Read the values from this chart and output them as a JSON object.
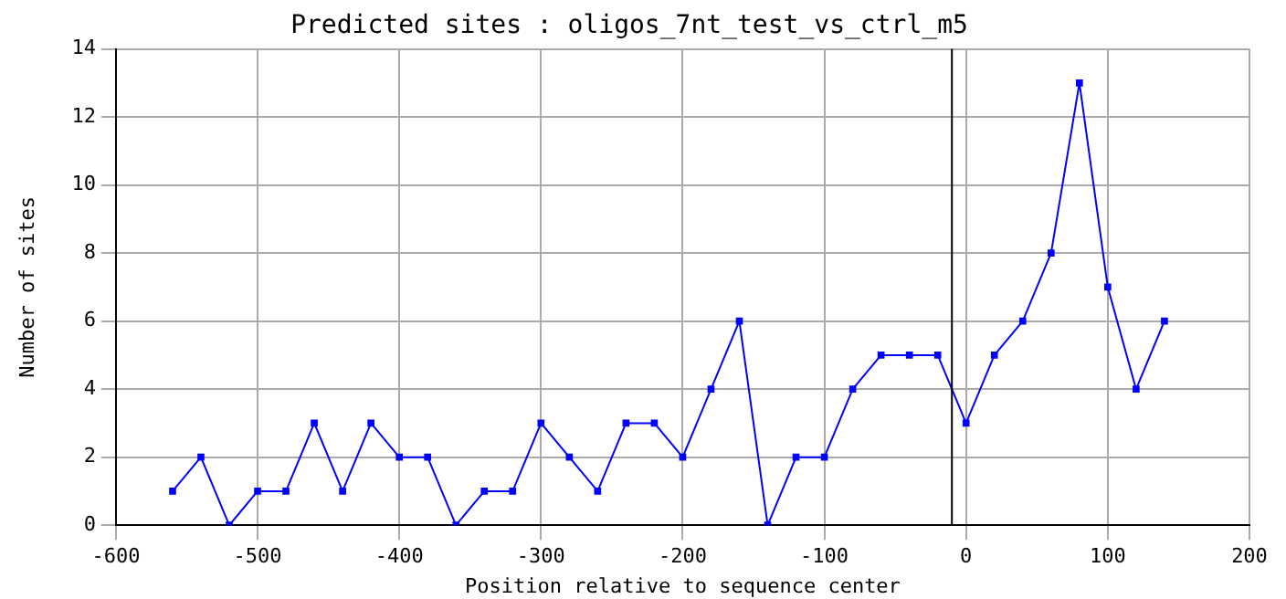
{
  "chart_data": {
    "type": "line",
    "title": "Predicted sites : oligos_7nt_test_vs_ctrl_m5",
    "xlabel": "Position relative to sequence center",
    "ylabel": "Number of sites",
    "x": [
      -560,
      -540,
      -520,
      -500,
      -480,
      -460,
      -440,
      -420,
      -400,
      -380,
      -360,
      -340,
      -320,
      -300,
      -280,
      -260,
      -240,
      -220,
      -200,
      -180,
      -160,
      -140,
      -120,
      -100,
      -80,
      -60,
      -40,
      -20,
      0,
      20,
      40,
      60,
      80,
      100,
      120,
      140
    ],
    "series": [
      {
        "color": "#0000ff",
        "values": [
          1,
          2,
          0,
          1,
          1,
          3,
          1,
          3,
          2,
          2,
          0,
          1,
          1,
          3,
          2,
          1,
          3,
          3,
          2,
          4,
          6,
          0,
          2,
          2,
          4,
          5,
          5,
          5,
          3,
          5,
          6,
          8,
          13,
          7,
          4,
          6
        ]
      }
    ],
    "xlim": [
      -600,
      200
    ],
    "xticks": [
      -600,
      -500,
      -400,
      -300,
      -200,
      -100,
      0,
      100,
      200
    ],
    "ylim": [
      0,
      14
    ],
    "yticks": [
      0,
      2,
      4,
      6,
      8,
      10,
      12,
      14
    ],
    "ref_lines": [
      {
        "axis": "x",
        "value": -10,
        "color": "#000000"
      }
    ],
    "grid": true,
    "marker": "square",
    "line_style": "solid",
    "legend": false
  }
}
